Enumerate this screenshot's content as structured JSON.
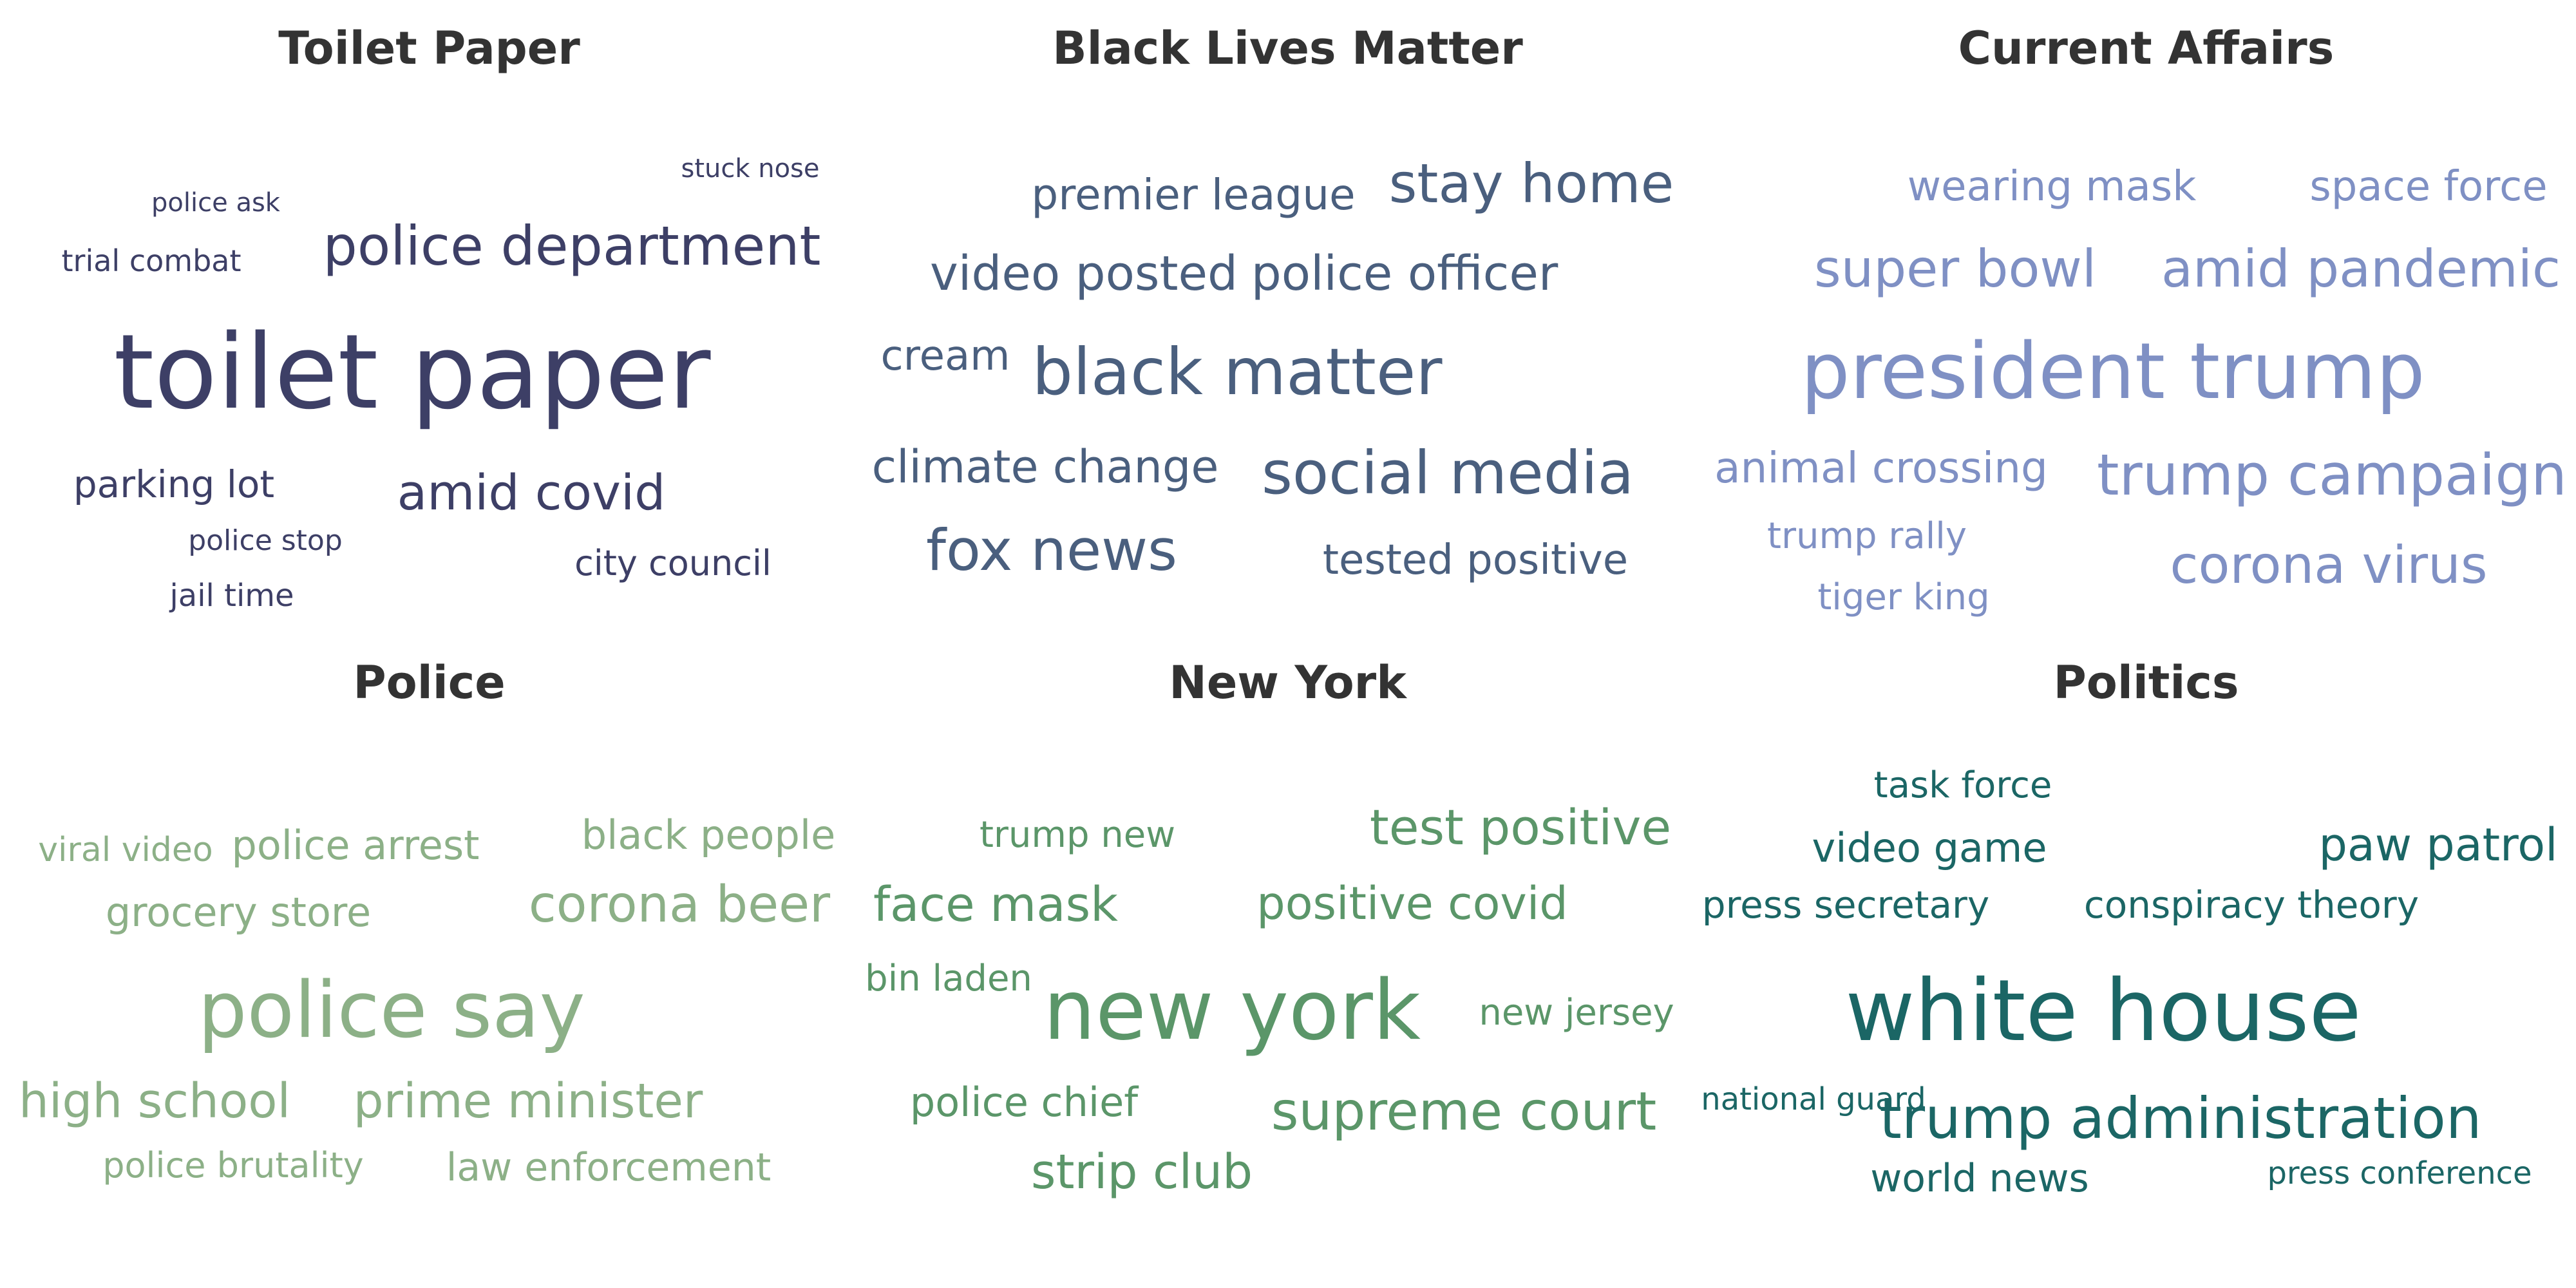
{
  "clouds": [
    {
      "title": "Toilet Paper",
      "color": "#3d3f66",
      "words": [
        {
          "text": "stuck nose",
          "weight": 1.0
        },
        {
          "text": "police ask",
          "weight": 1.0
        },
        {
          "text": "trial combat",
          "weight": 1.15
        },
        {
          "text": "police department",
          "weight": 2.1
        },
        {
          "text": "toilet paper",
          "weight": 4.0
        },
        {
          "text": "parking lot",
          "weight": 1.45
        },
        {
          "text": "amid covid",
          "weight": 1.9
        },
        {
          "text": "police stop",
          "weight": 1.1
        },
        {
          "text": "city council",
          "weight": 1.35
        },
        {
          "text": "jail time",
          "weight": 1.2
        }
      ]
    },
    {
      "title": "Black Lives Matter",
      "color": "#4a5f7e",
      "words": [
        {
          "text": "premier league",
          "weight": 1.65
        },
        {
          "text": "stay home",
          "weight": 2.1
        },
        {
          "text": "video posted",
          "weight": 1.85
        },
        {
          "text": "police officer",
          "weight": 1.85
        },
        {
          "text": "cream",
          "weight": 1.6
        },
        {
          "text": "black matter",
          "weight": 2.5
        },
        {
          "text": "climate change",
          "weight": 1.75
        },
        {
          "text": "social media",
          "weight": 2.3
        },
        {
          "text": "fox news",
          "weight": 2.2
        },
        {
          "text": "tested positive",
          "weight": 1.6
        }
      ]
    },
    {
      "title": "Current Affairs",
      "color": "#7f90c4",
      "words": [
        {
          "text": "wearing mask",
          "weight": 1.6
        },
        {
          "text": "space force",
          "weight": 1.6
        },
        {
          "text": "super bowl",
          "weight": 2.0
        },
        {
          "text": "amid pandemic",
          "weight": 2.0
        },
        {
          "text": "president trump",
          "weight": 3.0
        },
        {
          "text": "animal crossing",
          "weight": 1.65
        },
        {
          "text": "trump campaign",
          "weight": 2.2
        },
        {
          "text": "trump rally",
          "weight": 1.4
        },
        {
          "text": "corona virus",
          "weight": 2.0
        },
        {
          "text": "tiger king",
          "weight": 1.4
        }
      ]
    },
    {
      "title": "Police",
      "color": "#8cb087",
      "words": [
        {
          "text": "viral video",
          "weight": 1.3
        },
        {
          "text": "police arrest",
          "weight": 1.55
        },
        {
          "text": "black people",
          "weight": 1.55
        },
        {
          "text": "grocery store",
          "weight": 1.55
        },
        {
          "text": "corona beer",
          "weight": 1.95
        },
        {
          "text": "police say",
          "weight": 3.0
        },
        {
          "text": "high school",
          "weight": 1.85
        },
        {
          "text": "prime minister",
          "weight": 1.85
        },
        {
          "text": "police brutality",
          "weight": 1.35
        },
        {
          "text": "law enforcement",
          "weight": 1.5
        }
      ]
    },
    {
      "title": "New York",
      "color": "#5b9669",
      "words": [
        {
          "text": "trump new",
          "weight": 1.4
        },
        {
          "text": "test positive",
          "weight": 1.9
        },
        {
          "text": "face mask",
          "weight": 1.85
        },
        {
          "text": "positive covid",
          "weight": 1.75
        },
        {
          "text": "bin laden",
          "weight": 1.4
        },
        {
          "text": "new york",
          "weight": 3.2
        },
        {
          "text": "new jersey",
          "weight": 1.4
        },
        {
          "text": "police chief",
          "weight": 1.55
        },
        {
          "text": "supreme court",
          "weight": 2.05
        },
        {
          "text": "strip club",
          "weight": 1.85
        }
      ]
    },
    {
      "title": "Politics",
      "color": "#1b6665",
      "words": [
        {
          "text": "task force",
          "weight": 1.4
        },
        {
          "text": "video game",
          "weight": 1.55
        },
        {
          "text": "paw patrol",
          "weight": 1.75
        },
        {
          "text": "press secretary",
          "weight": 1.45
        },
        {
          "text": "conspiracy theory",
          "weight": 1.45
        },
        {
          "text": "white house",
          "weight": 3.3
        },
        {
          "text": "national guard",
          "weight": 1.2
        },
        {
          "text": "trump administration",
          "weight": 2.2
        },
        {
          "text": "world news",
          "weight": 1.5
        },
        {
          "text": "press conference",
          "weight": 1.2
        }
      ]
    }
  ]
}
